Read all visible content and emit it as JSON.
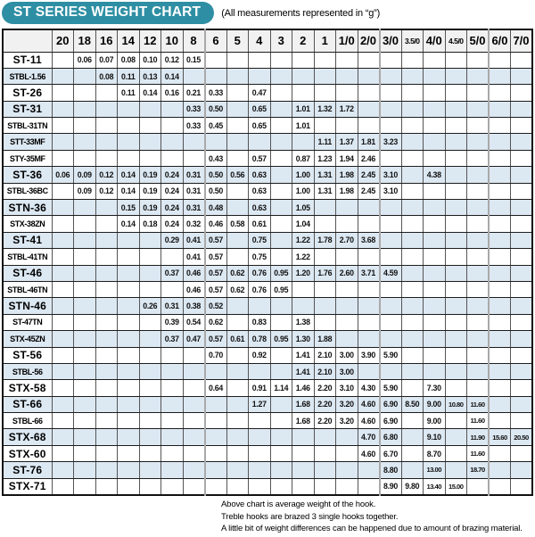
{
  "header": {
    "title": "ST SERIES WEIGHT CHART",
    "subtitle": "(All measurements represented in “g”)"
  },
  "colors": {
    "badge_teal": "#2e8fa4",
    "row_alt_blue": "#dce8f2",
    "header_gray": "#f1f1f1",
    "grid_dark": "#1d1d1d",
    "grid_mid": "#555555",
    "group_divider": "#a9a9a9"
  },
  "chart_data": {
    "type": "table",
    "title": "ST SERIES WEIGHT CHART",
    "unit_note": "(All measurements represented in “g”)",
    "columns": [
      "20",
      "18",
      "16",
      "14",
      "12",
      "10",
      "8",
      "6",
      "5",
      "4",
      "3",
      "2",
      "1",
      "1/0",
      "2/0",
      "3/0",
      "3.5/0",
      "4/0",
      "4.5/0",
      "5/0",
      "6/0",
      "7/0"
    ],
    "group_divider_before_columns": [
      "6",
      "3/0",
      "6/0"
    ],
    "rows": [
      {
        "model": "ST-11",
        "values": [
          "",
          "0.06",
          "0.07",
          "0.08",
          "0.10",
          "0.12",
          "0.15",
          "",
          "",
          "",
          "",
          "",
          "",
          "",
          "",
          "",
          "",
          "",
          "",
          "",
          "",
          ""
        ]
      },
      {
        "model": "STBL-1.56",
        "values": [
          "",
          "",
          "0.08",
          "0.11",
          "0.13",
          "0.14",
          "",
          "",
          "",
          "",
          "",
          "",
          "",
          "",
          "",
          "",
          "",
          "",
          "",
          "",
          "",
          ""
        ]
      },
      {
        "model": "ST-26",
        "values": [
          "",
          "",
          "",
          "0.11",
          "0.14",
          "0.16",
          "0.21",
          "0.33",
          "",
          "0.47",
          "",
          "",
          "",
          "",
          "",
          "",
          "",
          "",
          "",
          "",
          "",
          ""
        ]
      },
      {
        "model": "ST-31",
        "values": [
          "",
          "",
          "",
          "",
          "",
          "",
          "0.33",
          "0.50",
          "",
          "0.65",
          "",
          "1.01",
          "1.32",
          "1.72",
          "",
          "",
          "",
          "",
          "",
          "",
          "",
          ""
        ]
      },
      {
        "model": "STBL-31TN",
        "values": [
          "",
          "",
          "",
          "",
          "",
          "",
          "0.33",
          "0.45",
          "",
          "0.65",
          "",
          "1.01",
          "",
          "",
          "",
          "",
          "",
          "",
          "",
          "",
          "",
          ""
        ]
      },
      {
        "model": "STT-33MF",
        "values": [
          "",
          "",
          "",
          "",
          "",
          "",
          "",
          "",
          "",
          "",
          "",
          "",
          "1.11",
          "1.37",
          "1.81",
          "3.23",
          "",
          "",
          "",
          "",
          "",
          ""
        ]
      },
      {
        "model": "STY-35MF",
        "values": [
          "",
          "",
          "",
          "",
          "",
          "",
          "",
          "0.43",
          "",
          "0.57",
          "",
          "0.87",
          "1.23",
          "1.94",
          "2.46",
          "",
          "",
          "",
          "",
          "",
          "",
          ""
        ]
      },
      {
        "model": "ST-36",
        "values": [
          "0.06",
          "0.09",
          "0.12",
          "0.14",
          "0.19",
          "0.24",
          "0.31",
          "0.50",
          "0.56",
          "0.63",
          "",
          "1.00",
          "1.31",
          "1.98",
          "2.45",
          "3.10",
          "",
          "4.38",
          "",
          "",
          "",
          ""
        ]
      },
      {
        "model": "STBL-36BC",
        "values": [
          "",
          "0.09",
          "0.12",
          "0.14",
          "0.19",
          "0.24",
          "0.31",
          "0.50",
          "",
          "0.63",
          "",
          "1.00",
          "1.31",
          "1.98",
          "2.45",
          "3.10",
          "",
          "",
          "",
          "",
          "",
          ""
        ]
      },
      {
        "model": "STN-36",
        "values": [
          "",
          "",
          "",
          "0.15",
          "0.19",
          "0.24",
          "0.31",
          "0.48",
          "",
          "0.63",
          "",
          "1.05",
          "",
          "",
          "",
          "",
          "",
          "",
          "",
          "",
          "",
          ""
        ]
      },
      {
        "model": "STX-38ZN",
        "values": [
          "",
          "",
          "",
          "0.14",
          "0.18",
          "0.24",
          "0.32",
          "0.46",
          "0.58",
          "0.61",
          "",
          "1.04",
          "",
          "",
          "",
          "",
          "",
          "",
          "",
          "",
          "",
          ""
        ]
      },
      {
        "model": "ST-41",
        "values": [
          "",
          "",
          "",
          "",
          "",
          "0.29",
          "0.41",
          "0.57",
          "",
          "0.75",
          "",
          "1.22",
          "1.78",
          "2.70",
          "3.68",
          "",
          "",
          "",
          "",
          "",
          "",
          ""
        ]
      },
      {
        "model": "STBL-41TN",
        "values": [
          "",
          "",
          "",
          "",
          "",
          "",
          "0.41",
          "0.57",
          "",
          "0.75",
          "",
          "1.22",
          "",
          "",
          "",
          "",
          "",
          "",
          "",
          "",
          "",
          ""
        ]
      },
      {
        "model": "ST-46",
        "values": [
          "",
          "",
          "",
          "",
          "",
          "0.37",
          "0.46",
          "0.57",
          "0.62",
          "0.76",
          "0.95",
          "1.20",
          "1.76",
          "2.60",
          "3.71",
          "4.59",
          "",
          "",
          "",
          "",
          "",
          ""
        ]
      },
      {
        "model": "STBL-46TN",
        "values": [
          "",
          "",
          "",
          "",
          "",
          "",
          "0.46",
          "0.57",
          "0.62",
          "0.76",
          "0.95",
          "",
          "",
          "",
          "",
          "",
          "",
          "",
          "",
          "",
          "",
          ""
        ]
      },
      {
        "model": "STN-46",
        "values": [
          "",
          "",
          "",
          "",
          "0.26",
          "0.31",
          "0.38",
          "0.52",
          "",
          "",
          "",
          "",
          "",
          "",
          "",
          "",
          "",
          "",
          "",
          "",
          "",
          ""
        ]
      },
      {
        "model": "ST-47TN",
        "values": [
          "",
          "",
          "",
          "",
          "",
          "0.39",
          "0.54",
          "0.62",
          "",
          "0.83",
          "",
          "1.38",
          "",
          "",
          "",
          "",
          "",
          "",
          "",
          "",
          "",
          ""
        ]
      },
      {
        "model": "STX-45ZN",
        "values": [
          "",
          "",
          "",
          "",
          "",
          "0.37",
          "0.47",
          "0.57",
          "0.61",
          "0.78",
          "0.95",
          "1.30",
          "1.88",
          "",
          "",
          "",
          "",
          "",
          "",
          "",
          "",
          ""
        ]
      },
      {
        "model": "ST-56",
        "values": [
          "",
          "",
          "",
          "",
          "",
          "",
          "",
          "0.70",
          "",
          "0.92",
          "",
          "1.41",
          "2.10",
          "3.00",
          "3.90",
          "5.90",
          "",
          "",
          "",
          "",
          "",
          ""
        ]
      },
      {
        "model": "STBL-56",
        "values": [
          "",
          "",
          "",
          "",
          "",
          "",
          "",
          "",
          "",
          "",
          "",
          "1.41",
          "2.10",
          "3.00",
          "",
          "",
          "",
          "",
          "",
          "",
          "",
          ""
        ]
      },
      {
        "model": "STX-58",
        "values": [
          "",
          "",
          "",
          "",
          "",
          "",
          "",
          "0.64",
          "",
          "0.91",
          "1.14",
          "1.46",
          "2.20",
          "3.10",
          "4.30",
          "5.90",
          "",
          "7.30",
          "",
          "",
          "",
          ""
        ]
      },
      {
        "model": "ST-66",
        "values": [
          "",
          "",
          "",
          "",
          "",
          "",
          "",
          "",
          "",
          "1.27",
          "",
          "1.68",
          "2.20",
          "3.20",
          "4.60",
          "6.90",
          "8.50",
          "9.00",
          "10.80",
          "11.60",
          "",
          ""
        ]
      },
      {
        "model": "STBL-66",
        "values": [
          "",
          "",
          "",
          "",
          "",
          "",
          "",
          "",
          "",
          "",
          "",
          "1.68",
          "2.20",
          "3.20",
          "4.60",
          "6.90",
          "",
          "9.00",
          "",
          "11.60",
          "",
          ""
        ]
      },
      {
        "model": "STX-68",
        "values": [
          "",
          "",
          "",
          "",
          "",
          "",
          "",
          "",
          "",
          "",
          "",
          "",
          "",
          "",
          "4.70",
          "6.80",
          "",
          "9.10",
          "",
          "11.90",
          "15.60",
          "20.50"
        ]
      },
      {
        "model": "STX-60",
        "values": [
          "",
          "",
          "",
          "",
          "",
          "",
          "",
          "",
          "",
          "",
          "",
          "",
          "",
          "",
          "4.60",
          "6.70",
          "",
          "8.70",
          "",
          "11.60",
          "",
          ""
        ]
      },
      {
        "model": "ST-76",
        "values": [
          "",
          "",
          "",
          "",
          "",
          "",
          "",
          "",
          "",
          "",
          "",
          "",
          "",
          "",
          "",
          "8.80",
          "",
          "13.00",
          "",
          "18.70",
          "",
          ""
        ]
      },
      {
        "model": "STX-71",
        "values": [
          "",
          "",
          "",
          "",
          "",
          "",
          "",
          "",
          "",
          "",
          "",
          "",
          "",
          "",
          "",
          "8.90",
          "9.80",
          "13.40",
          "15.00",
          "",
          "",
          ""
        ]
      }
    ]
  },
  "footer": {
    "lines": [
      "Above chart is average weight of the hook.",
      "Treble hooks are brazed 3 single hooks together.",
      "A little bit of weight differences can be happened due to amount of brazing material."
    ]
  }
}
